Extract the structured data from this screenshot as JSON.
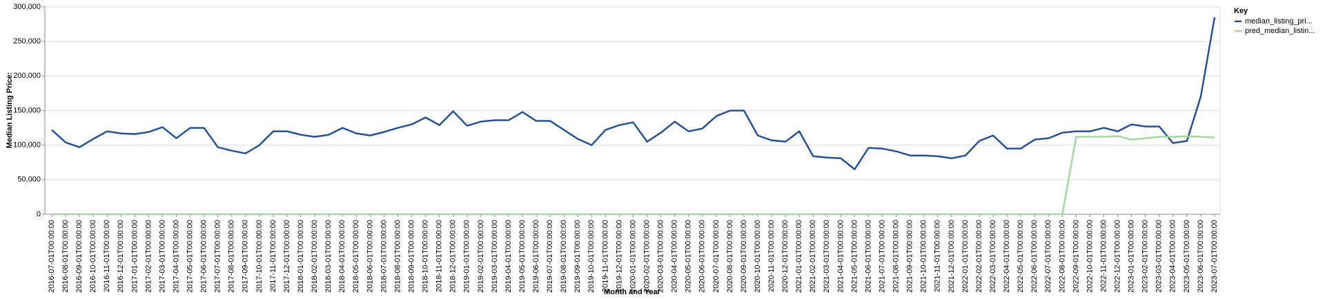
{
  "chart_data": {
    "type": "line",
    "x_label": "Month and Year",
    "y_label": "Median Listing Price:",
    "legend_title": "Key",
    "legend_position": "right",
    "grid": true,
    "categories": [
      "2016-07-01T00:00:00",
      "2016-08-01T00:00:00",
      "2016-09-01T00:00:00",
      "2016-10-01T00:00:00",
      "2016-11-01T00:00:00",
      "2016-12-01T00:00:00",
      "2017-01-01T00:00:00",
      "2017-02-01T00:00:00",
      "2017-03-01T00:00:00",
      "2017-04-01T00:00:00",
      "2017-05-01T00:00:00",
      "2017-06-01T00:00:00",
      "2017-07-01T00:00:00",
      "2017-08-01T00:00:00",
      "2017-09-01T00:00:00",
      "2017-10-01T00:00:00",
      "2017-11-01T00:00:00",
      "2017-12-01T00:00:00",
      "2018-01-01T00:00:00",
      "2018-02-01T00:00:00",
      "2018-03-01T00:00:00",
      "2018-04-01T00:00:00",
      "2018-05-01T00:00:00",
      "2018-06-01T00:00:00",
      "2018-07-01T00:00:00",
      "2018-08-01T00:00:00",
      "2018-09-01T00:00:00",
      "2018-10-01T00:00:00",
      "2018-11-01T00:00:00",
      "2018-12-01T00:00:00",
      "2019-01-01T00:00:00",
      "2019-02-01T00:00:00",
      "2019-03-01T00:00:00",
      "2019-04-01T00:00:00",
      "2019-05-01T00:00:00",
      "2019-06-01T00:00:00",
      "2019-07-01T00:00:00",
      "2019-08-01T00:00:00",
      "2019-09-01T00:00:00",
      "2019-10-01T00:00:00",
      "2019-11-01T00:00:00",
      "2019-12-01T00:00:00",
      "2020-01-01T00:00:00",
      "2020-02-01T00:00:00",
      "2020-03-01T00:00:00",
      "2020-04-01T00:00:00",
      "2020-05-01T00:00:00",
      "2020-06-01T00:00:00",
      "2020-07-01T00:00:00",
      "2020-08-01T00:00:00",
      "2020-09-01T00:00:00",
      "2020-10-01T00:00:00",
      "2020-11-01T00:00:00",
      "2020-12-01T00:00:00",
      "2021-01-01T00:00:00",
      "2021-02-01T00:00:00",
      "2021-03-01T00:00:00",
      "2021-04-01T00:00:00",
      "2021-05-01T00:00:00",
      "2021-06-01T00:00:00",
      "2021-07-01T00:00:00",
      "2021-08-01T00:00:00",
      "2021-09-01T00:00:00",
      "2021-10-01T00:00:00",
      "2021-11-01T00:00:00",
      "2021-12-01T00:00:00",
      "2022-01-01T00:00:00",
      "2022-02-01T00:00:00",
      "2022-03-01T00:00:00",
      "2022-04-01T00:00:00",
      "2022-05-01T00:00:00",
      "2022-06-01T00:00:00",
      "2022-07-01T00:00:00",
      "2022-08-01T00:00:00",
      "2022-09-01T00:00:00",
      "2022-10-01T00:00:00",
      "2022-11-01T00:00:00",
      "2022-12-01T00:00:00",
      "2023-01-01T00:00:00",
      "2023-02-01T00:00:00",
      "2023-03-01T00:00:00",
      "2023-04-01T00:00:00",
      "2023-05-01T00:00:00",
      "2023-06-01T00:00:00",
      "2023-07-01T00:00:00"
    ],
    "series": [
      {
        "name": "median_listing_pri...",
        "color": "#24509a",
        "values": [
          122000,
          104000,
          97000,
          109000,
          120000,
          117000,
          116000,
          119000,
          126000,
          110000,
          125000,
          125000,
          97000,
          92000,
          88000,
          100000,
          120000,
          120000,
          115000,
          112000,
          115000,
          125000,
          117000,
          114000,
          119000,
          125000,
          130000,
          140000,
          129000,
          149000,
          128000,
          134000,
          136000,
          136000,
          148000,
          135000,
          135000,
          122000,
          109000,
          100000,
          122000,
          129000,
          133000,
          105000,
          118000,
          134000,
          120000,
          124000,
          142000,
          150000,
          150000,
          114000,
          107000,
          105000,
          120000,
          84000,
          82000,
          81000,
          65000,
          96000,
          95000,
          91000,
          85000,
          85000,
          84000,
          81000,
          85000,
          106000,
          114000,
          95000,
          95000,
          108000,
          110000,
          118000,
          120000,
          120000,
          125000,
          120000,
          130000,
          127000,
          127000,
          103000,
          106000,
          170000,
          285000
        ]
      },
      {
        "name": "pred_median_listin...",
        "color": "#a0d99a",
        "values": [
          0,
          0,
          0,
          0,
          0,
          0,
          0,
          0,
          0,
          0,
          0,
          0,
          0,
          0,
          0,
          0,
          0,
          0,
          0,
          0,
          0,
          0,
          0,
          0,
          0,
          0,
          0,
          0,
          0,
          0,
          0,
          0,
          0,
          0,
          0,
          0,
          0,
          0,
          0,
          0,
          0,
          0,
          0,
          0,
          0,
          0,
          0,
          0,
          0,
          0,
          0,
          0,
          0,
          0,
          0,
          0,
          0,
          0,
          0,
          0,
          0,
          0,
          0,
          0,
          0,
          0,
          0,
          0,
          0,
          0,
          0,
          0,
          0,
          0,
          112000,
          112000,
          112000,
          113000,
          108000,
          110000,
          112000,
          112000,
          113000,
          112000,
          111000
        ]
      }
    ],
    "ylim": [
      0,
      300000
    ],
    "yticks": [
      0,
      {
        "value": 50000,
        "label": "50,000"
      },
      {
        "value": 100000,
        "label": "100,000"
      },
      {
        "value": 150000,
        "label": "150,000"
      },
      {
        "value": 200000,
        "label": "200,000"
      },
      {
        "value": 250000,
        "label": "250,000"
      },
      {
        "value": 300000,
        "label": "300,000"
      }
    ]
  }
}
